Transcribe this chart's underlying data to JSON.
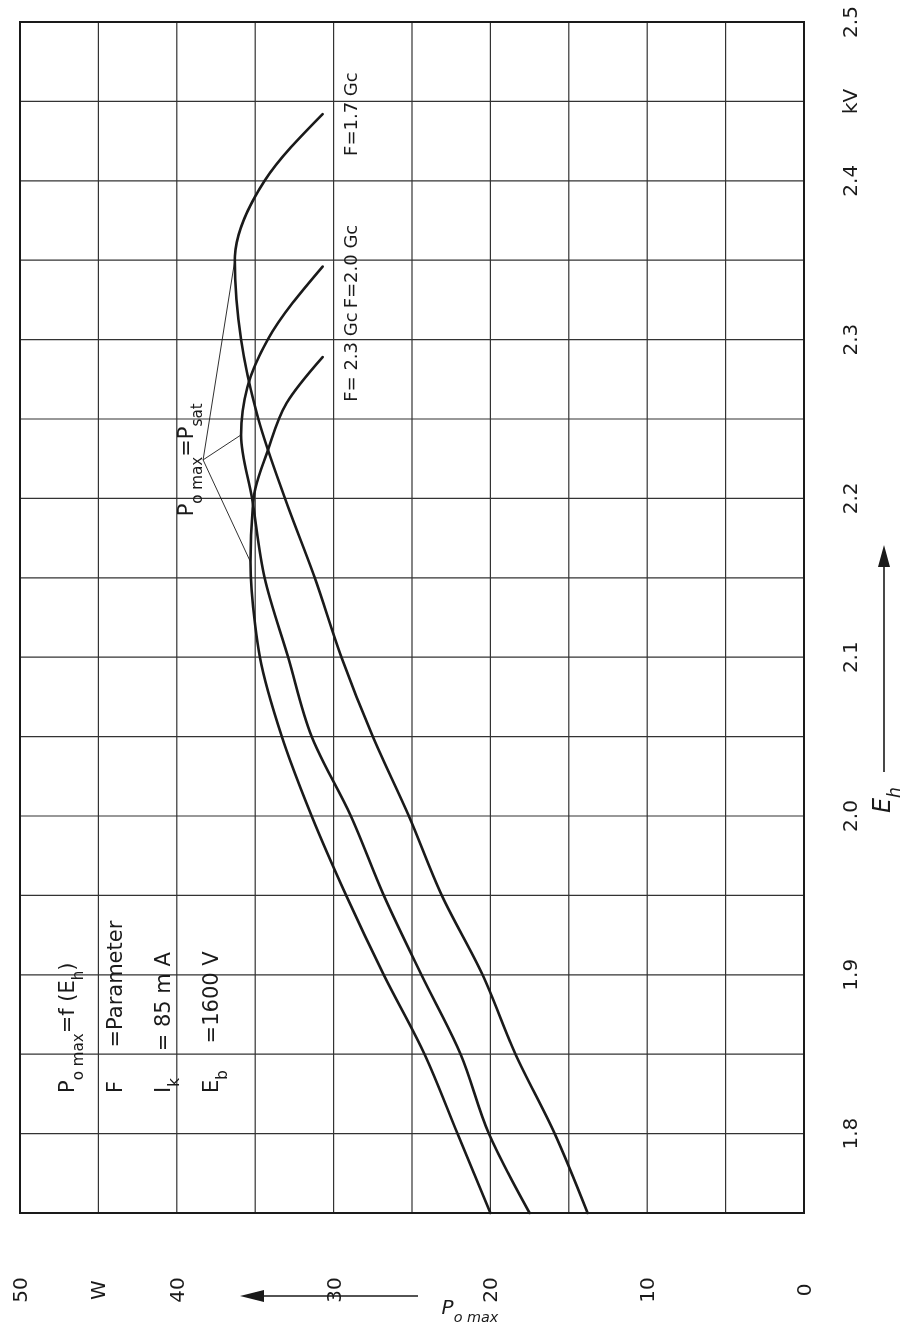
{
  "chart_data": {
    "type": "line",
    "xlabel": "P$_{o max}$",
    "ylabel": "E$_{h}$",
    "annotations": [
      "P$_{o max}$=f (E$_{h}$)",
      "F     =Parameter",
      "I$_{k}$    = 85 m A",
      "E$_{b}$    =1600 V",
      {
        "text": "P$_{o max}$=P$_{sat}$",
        "x": 35.9,
        "y": 2.24
      }
    ],
    "series": [
      {
        "name": "F= 2.3 Gc",
        "color": "#1a1a1a",
        "values": [
          1.75,
          1.8,
          1.85,
          1.9,
          1.95,
          2.0,
          2.05,
          2.1,
          2.12,
          2.16,
          2.2,
          2.23,
          2.26,
          2.289
        ],
        "x": [
          20.0,
          22.1,
          24.2,
          26.8,
          29.2,
          31.4,
          33.3,
          34.7,
          35.0,
          35.3,
          35.1,
          34.2,
          33.0,
          30.7
        ]
      },
      {
        "name": "F=2.0 Gc",
        "color": "#1a1a1a",
        "values": [
          1.75,
          1.8,
          1.85,
          1.9,
          1.95,
          2.0,
          2.05,
          2.1,
          2.15,
          2.2,
          2.24,
          2.27,
          2.3,
          2.346
        ],
        "x": [
          17.5,
          20.1,
          21.9,
          24.4,
          26.8,
          28.9,
          31.4,
          32.9,
          34.4,
          35.2,
          35.9,
          35.5,
          34.2,
          30.7
        ]
      },
      {
        "name": "F=1.7 Gc",
        "color": "#1a1a1a",
        "values": [
          1.75,
          1.8,
          1.85,
          1.9,
          1.95,
          2.0,
          2.05,
          2.1,
          2.15,
          2.2,
          2.25,
          2.3,
          2.35,
          2.4,
          2.442
        ],
        "x": [
          13.8,
          15.9,
          18.4,
          20.5,
          23.1,
          25.2,
          27.5,
          29.5,
          31.2,
          33.1,
          34.8,
          35.9,
          36.3,
          34.4,
          30.7
        ]
      }
    ],
    "ylim": [
      1.75,
      2.5
    ],
    "xlim": [
      50,
      0
    ],
    "yticks": [
      {
        "value": 1.8,
        "label": "1.8"
      },
      {
        "value": 1.85,
        "label": null
      },
      {
        "value": 1.9,
        "label": "1.9"
      },
      {
        "value": 1.95,
        "label": null
      },
      {
        "value": 2,
        "label": "2.0"
      },
      {
        "value": 2.05,
        "label": null
      },
      {
        "value": 2.1,
        "label": "2.1"
      },
      {
        "value": 2.15,
        "label": null
      },
      {
        "value": 2.2,
        "label": "2.2"
      },
      {
        "value": 2.25,
        "label": null
      },
      {
        "value": 2.3,
        "label": "2.3"
      },
      {
        "value": 2.35,
        "label": null
      },
      {
        "value": 2.4,
        "label": "2.4"
      },
      {
        "value": 2.45,
        "label": "kV"
      },
      {
        "value": 2.5,
        "label": "2.5"
      }
    ],
    "xticks": [
      0,
      {
        "value": 5,
        "label": null
      },
      10,
      {
        "value": 15,
        "label": null
      },
      20,
      {
        "value": 25,
        "label": null
      },
      30,
      {
        "value": 35,
        "label": null
      },
      40,
      {
        "value": 45,
        "label": "W"
      },
      50
    ],
    "grid": true
  }
}
